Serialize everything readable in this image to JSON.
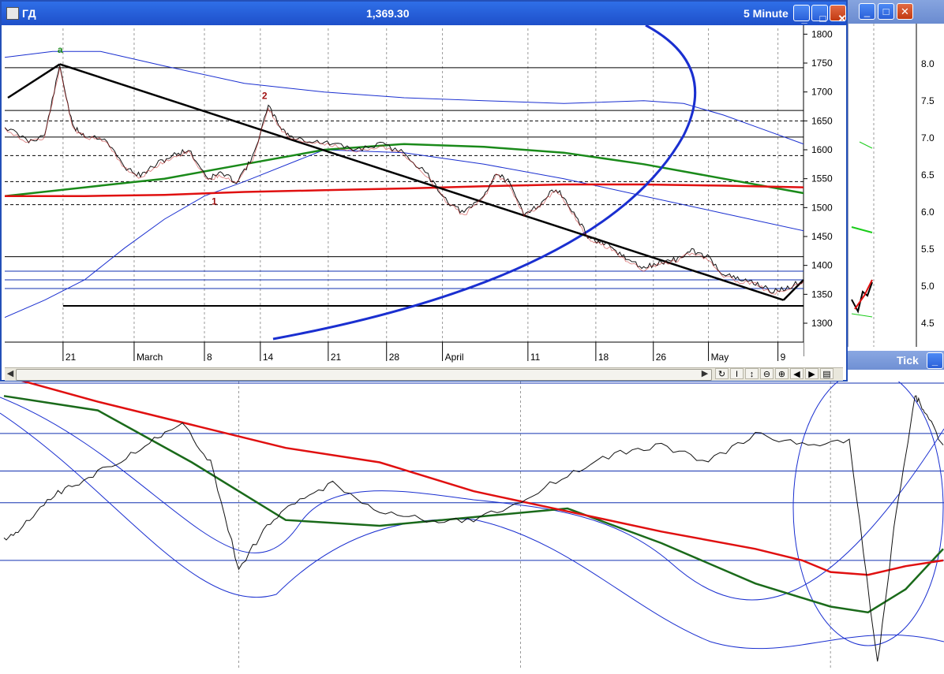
{
  "window": {
    "title_symbol": "ГД",
    "price": "1,369.30",
    "interval": "5 Minute",
    "minimize": "_",
    "restore": "□",
    "close": "✕"
  },
  "background_window": {
    "tick_label": "Tick",
    "y_ticks": [
      "8.0",
      "7.5",
      "7.0",
      "6.5",
      "6.0",
      "5.5",
      "5.0",
      "4.5"
    ]
  },
  "scroll_tools": [
    "↻",
    "I",
    "↕",
    "⊖",
    "⊕",
    "◀",
    "▶",
    "▤"
  ],
  "chart_data": [
    {
      "type": "line",
      "ylim": [
        1270,
        1810
      ],
      "y_ticks": [
        1800,
        1750,
        1700,
        1650,
        1600,
        1550,
        1500,
        1450,
        1400,
        1350,
        1300
      ],
      "x_tick_labels": [
        "21",
        "March",
        "8",
        "14",
        "21",
        "28",
        "April",
        "11",
        "18",
        "26",
        "May",
        "9"
      ],
      "wave_labels": [
        {
          "text": "a",
          "x": 0.069,
          "y": 1768
        },
        {
          "text": "2",
          "x": 0.325,
          "y": 1688
        },
        {
          "text": "1",
          "x": 0.262,
          "y": 1505
        }
      ],
      "price_series": {
        "name": "",
        "x": [
          0.0,
          0.03,
          0.05,
          0.069,
          0.085,
          0.1,
          0.125,
          0.15,
          0.17,
          0.19,
          0.21,
          0.23,
          0.255,
          0.27,
          0.29,
          0.31,
          0.33,
          0.345,
          0.36,
          0.385,
          0.41,
          0.44,
          0.47,
          0.5,
          0.53,
          0.555,
          0.575,
          0.6,
          0.615,
          0.63,
          0.65,
          0.67,
          0.69,
          0.71,
          0.73,
          0.745,
          0.76,
          0.78,
          0.8,
          0.82,
          0.84,
          0.86,
          0.88,
          0.9,
          0.92,
          0.94,
          0.96,
          0.98,
          1.0
        ],
        "y": [
          1640,
          1615,
          1625,
          1745,
          1640,
          1625,
          1620,
          1570,
          1555,
          1575,
          1590,
          1600,
          1550,
          1560,
          1545,
          1585,
          1675,
          1640,
          1620,
          1615,
          1610,
          1600,
          1610,
          1595,
          1555,
          1510,
          1490,
          1520,
          1560,
          1545,
          1490,
          1505,
          1535,
          1495,
          1450,
          1440,
          1430,
          1410,
          1395,
          1405,
          1410,
          1425,
          1415,
          1385,
          1375,
          1370,
          1355,
          1360,
          1375
        ]
      },
      "green_ma": {
        "x": [
          0.0,
          0.1,
          0.2,
          0.3,
          0.4,
          0.5,
          0.6,
          0.7,
          0.8,
          0.9,
          1.0
        ],
        "y": [
          1520,
          1535,
          1550,
          1575,
          1600,
          1610,
          1605,
          1595,
          1575,
          1550,
          1525
        ]
      },
      "red_ma": {
        "x": [
          0.0,
          0.1,
          0.2,
          0.3,
          0.4,
          0.5,
          0.6,
          0.7,
          0.8,
          0.9,
          1.0
        ],
        "y": [
          1520,
          1520,
          1522,
          1527,
          1530,
          1533,
          1537,
          1540,
          1540,
          1538,
          1535
        ]
      },
      "upper_band": {
        "x": [
          0.0,
          0.06,
          0.12,
          0.2,
          0.3,
          0.4,
          0.5,
          0.6,
          0.7,
          0.8,
          0.85,
          0.9,
          0.95,
          1.0
        ],
        "y": [
          1760,
          1770,
          1770,
          1745,
          1715,
          1700,
          1690,
          1685,
          1680,
          1685,
          1680,
          1660,
          1635,
          1610
        ]
      },
      "lower_band": {
        "x": [
          0.0,
          0.05,
          0.1,
          0.15,
          0.2,
          0.25,
          0.3,
          0.4,
          0.5,
          0.6,
          0.7,
          0.8,
          0.9,
          1.0
        ],
        "y": [
          1310,
          1340,
          1375,
          1430,
          1480,
          1520,
          1545,
          1600,
          1595,
          1575,
          1550,
          1520,
          1490,
          1460
        ]
      },
      "trendline": {
        "x": [
          0.069,
          0.975
        ],
        "y": [
          1748,
          1340
        ]
      },
      "horizontal_levels": [
        1742,
        1668,
        1650,
        1622,
        1590,
        1545,
        1505,
        1415,
        1390,
        1375,
        1360
      ]
    },
    {
      "type": "line",
      "price_series": {
        "x": [
          0.0,
          0.02,
          0.05,
          0.08,
          0.12,
          0.16,
          0.19,
          0.22,
          0.25,
          0.28,
          0.31,
          0.35,
          0.4,
          0.45,
          0.5,
          0.55,
          0.6,
          0.65,
          0.7,
          0.75,
          0.8,
          0.85,
          0.9,
          0.93,
          0.95,
          0.97,
          0.98,
          1.0
        ],
        "y": [
          0.45,
          0.5,
          0.6,
          0.65,
          0.72,
          0.8,
          0.85,
          0.72,
          0.35,
          0.5,
          0.58,
          0.65,
          0.55,
          0.52,
          0.52,
          0.58,
          0.68,
          0.75,
          0.78,
          0.72,
          0.82,
          0.78,
          0.8,
          0.02,
          0.55,
          0.95,
          0.9,
          0.78
        ]
      },
      "green_ma": {
        "x": [
          0.0,
          0.1,
          0.2,
          0.3,
          0.4,
          0.5,
          0.6,
          0.7,
          0.8,
          0.88,
          0.92,
          0.96,
          1.0
        ],
        "y": [
          0.95,
          0.9,
          0.72,
          0.52,
          0.5,
          0.53,
          0.56,
          0.44,
          0.3,
          0.22,
          0.2,
          0.28,
          0.42
        ]
      },
      "red_ma": {
        "x": [
          0.0,
          0.1,
          0.2,
          0.3,
          0.4,
          0.5,
          0.6,
          0.7,
          0.8,
          0.85,
          0.88,
          0.92,
          0.96,
          1.0
        ],
        "y": [
          1.02,
          0.93,
          0.85,
          0.77,
          0.72,
          0.62,
          0.55,
          0.48,
          0.42,
          0.38,
          0.34,
          0.33,
          0.36,
          0.38
        ]
      },
      "horizontal_levels": [
        0.82,
        0.69,
        0.58,
        0.38
      ]
    }
  ]
}
